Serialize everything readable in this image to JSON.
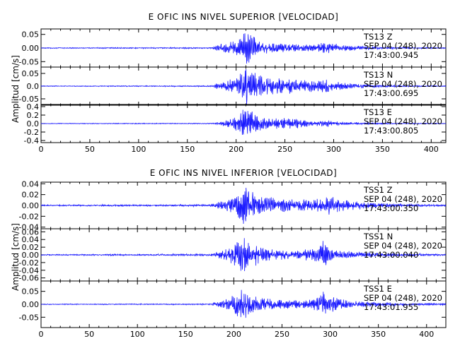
{
  "chart_data": [
    {
      "type": "line",
      "title": "E OFIC INS NIVEL SUPERIOR [VELOCIDAD]",
      "ylabel": "Amplitud [cm/s]",
      "xlabel": "",
      "xlim": [
        0,
        415
      ],
      "x_ticks": [
        "0",
        "50",
        "100",
        "150",
        "200",
        "250",
        "300",
        "350",
        "400"
      ],
      "x_tick_values": [
        0,
        50,
        100,
        150,
        200,
        250,
        300,
        350,
        400
      ],
      "line_color": "#1a1aff",
      "channels": [
        {
          "station": "TS13",
          "component": "Z",
          "date": "SEP 04 (248), 2020",
          "time": "17:43:00.945",
          "ylim": [
            -0.07,
            0.07
          ],
          "y_ticks": [
            "0.05",
            "0.00",
            "-0.05"
          ],
          "y_tick_values": [
            0.05,
            0,
            -0.05
          ],
          "noise": 0.0008,
          "envelope": [
            [
              0,
              0.001
            ],
            [
              175,
              0.002
            ],
            [
              180,
              0.01
            ],
            [
              200,
              0.025
            ],
            [
              205,
              0.045
            ],
            [
              210,
              0.06
            ],
            [
              215,
              0.05
            ],
            [
              225,
              0.02
            ],
            [
              245,
              0.015
            ],
            [
              260,
              0.012
            ],
            [
              280,
              0.01
            ],
            [
              290,
              0.02
            ],
            [
              295,
              0.018
            ],
            [
              310,
              0.01
            ],
            [
              340,
              0.004
            ],
            [
              380,
              0.002
            ],
            [
              415,
              0.0015
            ]
          ]
        },
        {
          "station": "TS13",
          "component": "N",
          "date": "SEP 04 (248), 2020",
          "time": "17:43:00.695",
          "ylim": [
            -0.075,
            0.075
          ],
          "y_ticks": [
            "0.05",
            "0.0",
            "-0.05"
          ],
          "y_tick_values": [
            0.05,
            0,
            -0.05
          ],
          "noise": 0.0008,
          "envelope": [
            [
              0,
              0.001
            ],
            [
              175,
              0.002
            ],
            [
              180,
              0.01
            ],
            [
              200,
              0.03
            ],
            [
              205,
              0.05
            ],
            [
              210,
              0.07
            ],
            [
              215,
              0.055
            ],
            [
              230,
              0.03
            ],
            [
              255,
              0.028
            ],
            [
              270,
              0.02
            ],
            [
              285,
              0.02
            ],
            [
              295,
              0.025
            ],
            [
              310,
              0.012
            ],
            [
              340,
              0.005
            ],
            [
              380,
              0.002
            ],
            [
              415,
              0.0015
            ]
          ]
        },
        {
          "station": "TS13",
          "component": "E",
          "date": "SEP 04 (248), 2020",
          "time": "17:43:00.805",
          "ylim": [
            -0.45,
            0.45
          ],
          "y_ticks": [
            "0.4",
            "0.2",
            "0.0",
            "-0.2",
            "-0.4"
          ],
          "y_tick_values": [
            0.4,
            0.2,
            0,
            -0.2,
            -0.4
          ],
          "noise": 0.004,
          "envelope": [
            [
              0,
              0.005
            ],
            [
              175,
              0.01
            ],
            [
              185,
              0.04
            ],
            [
              200,
              0.15
            ],
            [
              208,
              0.35
            ],
            [
              212,
              0.4
            ],
            [
              220,
              0.2
            ],
            [
              235,
              0.1
            ],
            [
              250,
              0.14
            ],
            [
              265,
              0.1
            ],
            [
              280,
              0.05
            ],
            [
              295,
              0.07
            ],
            [
              310,
              0.03
            ],
            [
              340,
              0.015
            ],
            [
              380,
              0.008
            ],
            [
              415,
              0.006
            ]
          ]
        }
      ]
    },
    {
      "type": "line",
      "title": "E OFIC INS NIVEL INFERIOR [VELOCIDAD]",
      "ylabel": "Amplitud [cm/s]",
      "xlabel": "",
      "xlim": [
        0,
        420
      ],
      "x_ticks": [
        "0",
        "50",
        "100",
        "150",
        "200",
        "250",
        "300",
        "350",
        "400"
      ],
      "x_tick_values": [
        0,
        50,
        100,
        150,
        200,
        250,
        300,
        350,
        400
      ],
      "line_color": "#1a1aff",
      "channels": [
        {
          "station": "TSS1",
          "component": "Z",
          "date": "SEP 04 (248), 2020",
          "time": "17:43:00.350",
          "ylim": [
            -0.043,
            0.043
          ],
          "y_ticks": [
            "0.04",
            "0.02",
            "0.00",
            "-0.02",
            "-0.04"
          ],
          "y_tick_values": [
            0.04,
            0.02,
            0,
            -0.02,
            -0.04
          ],
          "noise": 0.0006,
          "envelope": [
            [
              0,
              0.0008
            ],
            [
              175,
              0.0015
            ],
            [
              180,
              0.004
            ],
            [
              195,
              0.01
            ],
            [
              205,
              0.025
            ],
            [
              210,
              0.035
            ],
            [
              215,
              0.03
            ],
            [
              230,
              0.015
            ],
            [
              250,
              0.012
            ],
            [
              270,
              0.01
            ],
            [
              285,
              0.012
            ],
            [
              295,
              0.018
            ],
            [
              310,
              0.01
            ],
            [
              340,
              0.005
            ],
            [
              380,
              0.002
            ],
            [
              420,
              0.0015
            ]
          ]
        },
        {
          "station": "TSS1",
          "component": "N",
          "date": "SEP 04 (248), 2020",
          "time": "17:43:00.040",
          "ylim": [
            -0.068,
            0.068
          ],
          "y_ticks": [
            "0.06",
            "0.04",
            "0.02",
            "0.00",
            "-0.02",
            "-0.04",
            "-0.06"
          ],
          "y_tick_values": [
            0.06,
            0.04,
            0.02,
            0,
            -0.02,
            -0.04,
            -0.06
          ],
          "noise": 0.0008,
          "envelope": [
            [
              0,
              0.001
            ],
            [
              175,
              0.002
            ],
            [
              180,
              0.006
            ],
            [
              195,
              0.015
            ],
            [
              205,
              0.035
            ],
            [
              210,
              0.05
            ],
            [
              215,
              0.03
            ],
            [
              240,
              0.012
            ],
            [
              260,
              0.01
            ],
            [
              285,
              0.015
            ],
            [
              293,
              0.035
            ],
            [
              298,
              0.02
            ],
            [
              310,
              0.01
            ],
            [
              340,
              0.005
            ],
            [
              380,
              0.003
            ],
            [
              420,
              0.002
            ]
          ]
        },
        {
          "station": "TSS1",
          "component": "E",
          "date": "SEP 04 (248), 2020",
          "time": "17:43:01.955",
          "ylim": [
            -0.09,
            0.09
          ],
          "y_ticks": [
            "0.05",
            "0.00",
            "-0.05"
          ],
          "y_tick_values": [
            0.05,
            0,
            -0.05
          ],
          "noise": 0.0008,
          "envelope": [
            [
              0,
              0.001
            ],
            [
              175,
              0.002
            ],
            [
              180,
              0.008
            ],
            [
              195,
              0.02
            ],
            [
              205,
              0.045
            ],
            [
              210,
              0.065
            ],
            [
              215,
              0.04
            ],
            [
              235,
              0.02
            ],
            [
              260,
              0.015
            ],
            [
              285,
              0.02
            ],
            [
              293,
              0.05
            ],
            [
              300,
              0.03
            ],
            [
              315,
              0.015
            ],
            [
              345,
              0.008
            ],
            [
              380,
              0.004
            ],
            [
              420,
              0.003
            ]
          ]
        }
      ]
    }
  ]
}
